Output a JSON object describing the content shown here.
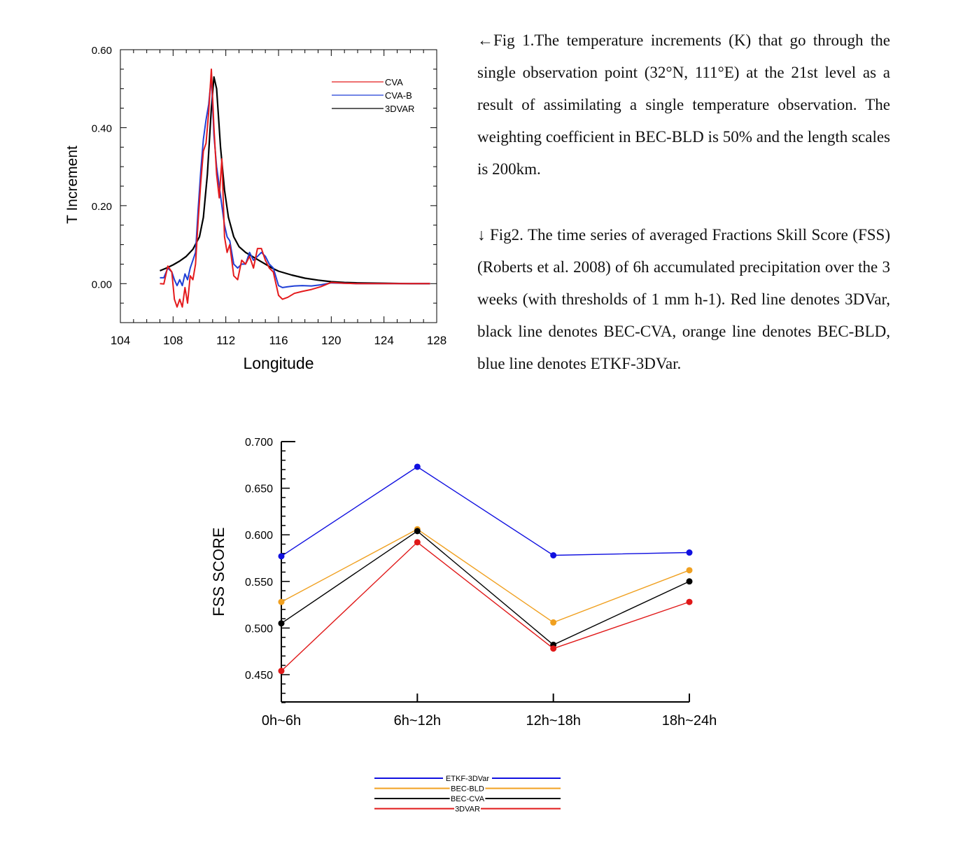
{
  "captions": {
    "fig1": "←Fig 1.The temperature increments (K) that go through the single observation point (32°N, 111°E) at the 21st level as a result of assimilating a single temperature observation. The weighting coefficient in BEC-BLD is 50% and the length scales is 200km.",
    "fig2": "↓ Fig2. The time series of averaged Fractions Skill Score (FSS) (Roberts et al. 2008) of 6h accumulated precipitation over the 3 weeks (with thresholds of 1 mm h-1). Red line denotes 3DVar, black line denotes BEC-CVA, orange line denotes BEC-BLD, blue line denotes ETKF-3DVar."
  },
  "chart_data": [
    {
      "type": "line",
      "xlabel": "Longitude",
      "ylabel": "T Increment",
      "xlim": [
        104,
        128
      ],
      "ylim": [
        -0.1,
        0.6
      ],
      "xticks": [
        "104",
        "108",
        "112",
        "116",
        "120",
        "124",
        "128"
      ],
      "yticks": [
        "0.60",
        "0.40",
        "0.20",
        "0.00"
      ],
      "ytick_values": [
        0.6,
        0.4,
        0.2,
        0.0
      ],
      "xtick_values": [
        104,
        108,
        112,
        116,
        120,
        124,
        128
      ],
      "legend_position": "top-right",
      "series": [
        {
          "name": "CVA",
          "color": "#e41a1c",
          "x": [
            107,
            107.3,
            107.6,
            107.9,
            108.1,
            108.3,
            108.5,
            108.7,
            108.9,
            109.1,
            109.3,
            109.5,
            109.7,
            109.9,
            110.1,
            110.3,
            110.5,
            110.7,
            110.9,
            111.1,
            111.3,
            111.5,
            111.7,
            111.9,
            112.1,
            112.3,
            112.6,
            112.9,
            113.2,
            113.5,
            113.8,
            114.1,
            114.4,
            114.7,
            115.0,
            115.3,
            115.6,
            116.0,
            116.3,
            116.7,
            117.2,
            117.8,
            118.5,
            119.2,
            120,
            121,
            122,
            124,
            126,
            127.5
          ],
          "y": [
            0.0,
            -0.001,
            0.045,
            0.03,
            -0.04,
            -0.06,
            -0.04,
            -0.06,
            -0.01,
            -0.05,
            0.02,
            0.01,
            0.05,
            0.16,
            0.26,
            0.34,
            0.36,
            0.44,
            0.55,
            0.4,
            0.28,
            0.22,
            0.32,
            0.12,
            0.08,
            0.1,
            0.02,
            0.01,
            0.06,
            0.05,
            0.07,
            0.04,
            0.09,
            0.09,
            0.06,
            0.04,
            0.03,
            -0.03,
            -0.04,
            -0.035,
            -0.025,
            -0.02,
            -0.015,
            -0.008,
            0.003,
            0.001,
            0.0,
            0.0,
            0.0,
            0.0
          ]
        },
        {
          "name": "CVA-B",
          "color": "#1f3fd6",
          "x": [
            107,
            107.3,
            107.6,
            107.9,
            108.1,
            108.3,
            108.5,
            108.7,
            108.9,
            109.1,
            109.3,
            109.5,
            109.7,
            109.9,
            110.1,
            110.3,
            110.5,
            110.7,
            110.9,
            111.1,
            111.3,
            111.5,
            111.7,
            111.9,
            112.1,
            112.3,
            112.6,
            112.9,
            113.2,
            113.5,
            113.8,
            114.1,
            114.4,
            114.7,
            115.0,
            115.3,
            115.6,
            116.0,
            116.3,
            116.7,
            117.2,
            117.8,
            118.5,
            119.2,
            120,
            121,
            122,
            124,
            126,
            127.5
          ],
          "y": [
            0.015,
            0.015,
            0.04,
            0.03,
            0.01,
            -0.005,
            0.01,
            -0.005,
            0.025,
            0.01,
            0.04,
            0.06,
            0.08,
            0.19,
            0.29,
            0.37,
            0.42,
            0.46,
            0.53,
            0.38,
            0.3,
            0.25,
            0.2,
            0.15,
            0.12,
            0.11,
            0.05,
            0.04,
            0.05,
            0.05,
            0.08,
            0.06,
            0.07,
            0.08,
            0.07,
            0.05,
            0.04,
            -0.005,
            -0.01,
            -0.008,
            -0.006,
            -0.005,
            -0.006,
            -0.003,
            0.002,
            0.001,
            0.0,
            0.0,
            0.0,
            0.0
          ]
        },
        {
          "name": "3DVAR",
          "color": "#000000",
          "x": [
            107,
            107.5,
            108,
            108.5,
            109,
            109.5,
            110,
            110.3,
            110.6,
            110.9,
            111.1,
            111.3,
            111.6,
            111.9,
            112.2,
            112.6,
            113,
            113.5,
            114,
            114.5,
            115,
            115.5,
            116,
            117,
            118,
            119,
            120,
            121,
            122,
            124,
            126,
            127.5
          ],
          "y": [
            0.033,
            0.04,
            0.048,
            0.058,
            0.07,
            0.088,
            0.12,
            0.17,
            0.28,
            0.45,
            0.53,
            0.5,
            0.35,
            0.24,
            0.17,
            0.12,
            0.095,
            0.08,
            0.07,
            0.06,
            0.05,
            0.04,
            0.032,
            0.022,
            0.014,
            0.009,
            0.005,
            0.003,
            0.002,
            0.001,
            0.0,
            0.0
          ]
        }
      ]
    },
    {
      "type": "line",
      "xlabel": "",
      "ylabel": "FSS SCORE",
      "categories": [
        "0h~6h",
        "6h~12h",
        "12h~18h",
        "18h~24h"
      ],
      "ylim": [
        0.42,
        0.7
      ],
      "yticks": [
        "0.700",
        "0.650",
        "0.600",
        "0.550",
        "0.500",
        "0.450"
      ],
      "ytick_values": [
        0.7,
        0.65,
        0.6,
        0.55,
        0.5,
        0.45
      ],
      "legend_position": "bottom-center",
      "series": [
        {
          "name": "ETKF-3DVar",
          "color": "#1010e0",
          "values": [
            0.577,
            0.673,
            0.578,
            0.581
          ]
        },
        {
          "name": "BEC-BLD",
          "color": "#f0a020",
          "values": [
            0.528,
            0.606,
            0.506,
            0.562
          ]
        },
        {
          "name": "BEC-CVA",
          "color": "#000000",
          "values": [
            0.505,
            0.604,
            0.482,
            0.55
          ]
        },
        {
          "name": "3DVAR",
          "color": "#e01818",
          "values": [
            0.454,
            0.592,
            0.478,
            0.528
          ]
        }
      ]
    }
  ]
}
